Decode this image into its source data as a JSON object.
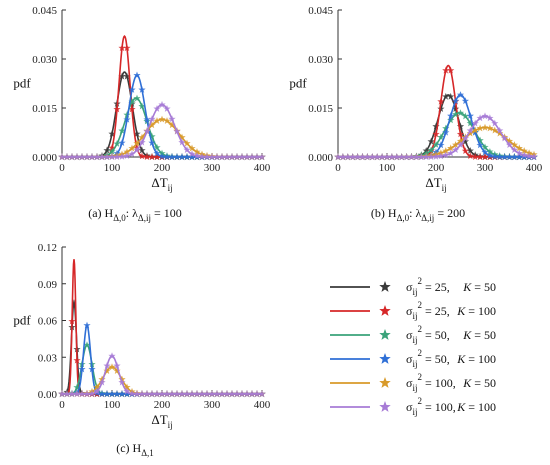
{
  "legend": {
    "entries": [
      {
        "sigma_label": "σ",
        "sigma_sub": "ij",
        "sigma_sup": "2",
        "value": "25",
        "k_label": "K",
        "k_value": "50",
        "color": "#3a3a3a"
      },
      {
        "sigma_label": "σ",
        "sigma_sub": "ij",
        "sigma_sup": "2",
        "value": "25",
        "k_label": "K",
        "k_value": "100",
        "color": "#d62728"
      },
      {
        "sigma_label": "σ",
        "sigma_sub": "ij",
        "sigma_sup": "2",
        "value": "50",
        "k_label": "K",
        "k_value": "50",
        "color": "#3aa37a"
      },
      {
        "sigma_label": "σ",
        "sigma_sub": "ij",
        "sigma_sup": "2",
        "value": "50",
        "k_label": "K",
        "k_value": "100",
        "color": "#2f6fd6"
      },
      {
        "sigma_label": "σ",
        "sigma_sub": "ij",
        "sigma_sup": "2",
        "value": "100",
        "k_label": "K",
        "k_value": "50",
        "color": "#d89a2a"
      },
      {
        "sigma_label": "σ",
        "sigma_sub": "ij",
        "sigma_sup": "2",
        "value": "100",
        "k_label": "K",
        "k_value": "100",
        "color": "#a77bd6"
      }
    ]
  },
  "chart_data": [
    {
      "type": "line",
      "caption_prefix": "(a) H",
      "caption_sub": "Δ,0",
      "caption_mid": ": λ",
      "caption_sub2": "Δ,ij",
      "caption_suffix": " = 100",
      "ylabel": "pdf",
      "xlabel_main": "ΔT",
      "xlabel_sub": "ij",
      "xlim": [
        0,
        400
      ],
      "ylim": [
        0,
        0.045
      ],
      "xticks": [
        0,
        100,
        200,
        300,
        400
      ],
      "yticks": [
        0.0,
        0.015,
        0.03,
        0.045
      ],
      "yticklabels": [
        "0.000",
        "0.015",
        "0.030",
        "0.045"
      ],
      "series": [
        {
          "mean": 125,
          "sd": 15.5,
          "peak": 0.026,
          "color": "#3a3a3a"
        },
        {
          "mean": 125,
          "sd": 11,
          "peak": 0.037,
          "color": "#d62728"
        },
        {
          "mean": 148,
          "sd": 22,
          "peak": 0.018,
          "color": "#3aa37a"
        },
        {
          "mean": 150,
          "sd": 16,
          "peak": 0.025,
          "color": "#2f6fd6"
        },
        {
          "mean": 200,
          "sd": 35,
          "peak": 0.0115,
          "color": "#d89a2a"
        },
        {
          "mean": 200,
          "sd": 25,
          "peak": 0.016,
          "color": "#a77bd6"
        }
      ]
    },
    {
      "type": "line",
      "caption_prefix": "(b) H",
      "caption_sub": "Δ,0",
      "caption_mid": ": λ",
      "caption_sub2": "Δ,ij",
      "caption_suffix": " = 200",
      "ylabel": "pdf",
      "xlabel_main": "ΔT",
      "xlabel_sub": "ij",
      "xlim": [
        0,
        400
      ],
      "ylim": [
        0,
        0.045
      ],
      "xticks": [
        0,
        100,
        200,
        300,
        400
      ],
      "yticks": [
        0.0,
        0.015,
        0.03,
        0.045
      ],
      "yticklabels": [
        "0.000",
        "0.015",
        "0.030",
        "0.045"
      ],
      "series": [
        {
          "mean": 225,
          "sd": 21,
          "peak": 0.019,
          "color": "#3a3a3a"
        },
        {
          "mean": 225,
          "sd": 15,
          "peak": 0.028,
          "color": "#d62728"
        },
        {
          "mean": 248,
          "sd": 30,
          "peak": 0.0135,
          "color": "#3aa37a"
        },
        {
          "mean": 250,
          "sd": 22,
          "peak": 0.019,
          "color": "#2f6fd6"
        },
        {
          "mean": 300,
          "sd": 45,
          "peak": 0.009,
          "color": "#d89a2a"
        },
        {
          "mean": 300,
          "sd": 32,
          "peak": 0.0125,
          "color": "#a77bd6"
        }
      ]
    },
    {
      "type": "line",
      "caption_prefix": "(c) H",
      "caption_sub": "Δ,1",
      "caption_mid": "",
      "caption_sub2": "",
      "caption_suffix": "",
      "ylabel": "pdf",
      "xlabel_main": "ΔT",
      "xlabel_sub": "ij",
      "xlim": [
        0,
        400
      ],
      "ylim": [
        0,
        0.12
      ],
      "xticks": [
        0,
        100,
        200,
        300,
        400
      ],
      "yticks": [
        0.0,
        0.03,
        0.06,
        0.09,
        0.12
      ],
      "yticklabels": [
        "0.00",
        "0.03",
        "0.06",
        "0.09",
        "0.12"
      ],
      "series": [
        {
          "mean": 24,
          "sd": 5,
          "peak": 0.075,
          "color": "#3a3a3a"
        },
        {
          "mean": 24,
          "sd": 3.6,
          "peak": 0.11,
          "color": "#d62728"
        },
        {
          "mean": 50,
          "sd": 10,
          "peak": 0.04,
          "color": "#3aa37a"
        },
        {
          "mean": 50,
          "sd": 7,
          "peak": 0.056,
          "color": "#2f6fd6"
        },
        {
          "mean": 100,
          "sd": 18,
          "peak": 0.022,
          "color": "#d89a2a"
        },
        {
          "mean": 100,
          "sd": 13,
          "peak": 0.031,
          "color": "#a77bd6"
        }
      ]
    }
  ]
}
